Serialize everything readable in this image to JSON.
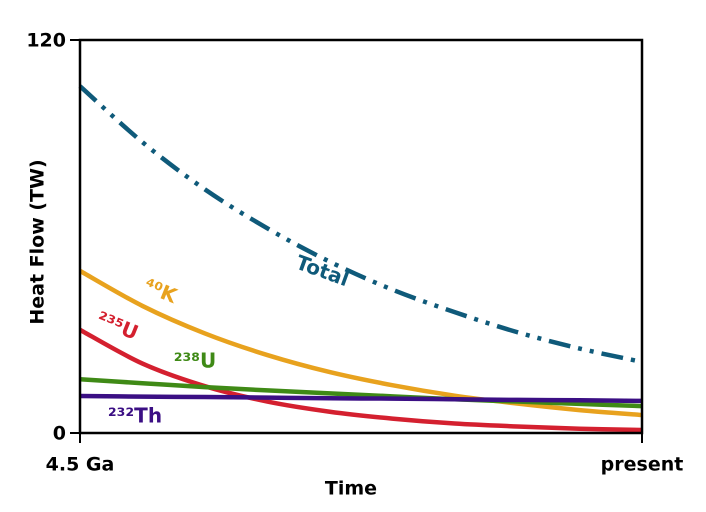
{
  "chart_data": {
    "type": "line",
    "xlabel": "Time",
    "ylabel": "Heat Flow (TW)",
    "x": [
      4.5,
      4.0,
      3.5,
      3.0,
      2.5,
      2.0,
      1.5,
      1.0,
      0.5,
      0
    ],
    "xlim": [
      4.5,
      0
    ],
    "xticks": [
      {
        "value": 4.5,
        "label": "4.5 Ga"
      },
      {
        "value": 0,
        "label": "present"
      }
    ],
    "ylim": [
      0,
      120
    ],
    "yticks": [
      0,
      120
    ],
    "series": [
      {
        "name": "Total",
        "color": "#0f5a7a",
        "dash": "dashdotdot",
        "values": [
          105.9,
          88.8,
          74.4,
          62.5,
          52.3,
          43.8,
          36.9,
          30.8,
          25.8,
          21.7
        ]
      },
      {
        "name": "⁴⁰K",
        "color": "#e8a21e",
        "values": [
          49.5,
          38.8,
          30.4,
          23.8,
          18.6,
          14.6,
          11.4,
          9.0,
          7.0,
          5.5
        ]
      },
      {
        "name": "²³⁵U",
        "color": "#d4202f",
        "values": [
          31.5,
          21.2,
          14.3,
          9.6,
          6.5,
          4.4,
          2.9,
          2.0,
          1.3,
          0.9
        ]
      },
      {
        "name": "²³⁸U",
        "color": "#3f8a16",
        "values": [
          16.4,
          15.2,
          14.0,
          13.0,
          12.1,
          11.2,
          10.3,
          9.6,
          8.9,
          8.2
        ]
      },
      {
        "name": "²³²Th",
        "color": "#3b0f84",
        "values": [
          11.3,
          11.1,
          11.0,
          10.8,
          10.6,
          10.5,
          10.3,
          10.1,
          10.0,
          9.8
        ]
      }
    ]
  }
}
